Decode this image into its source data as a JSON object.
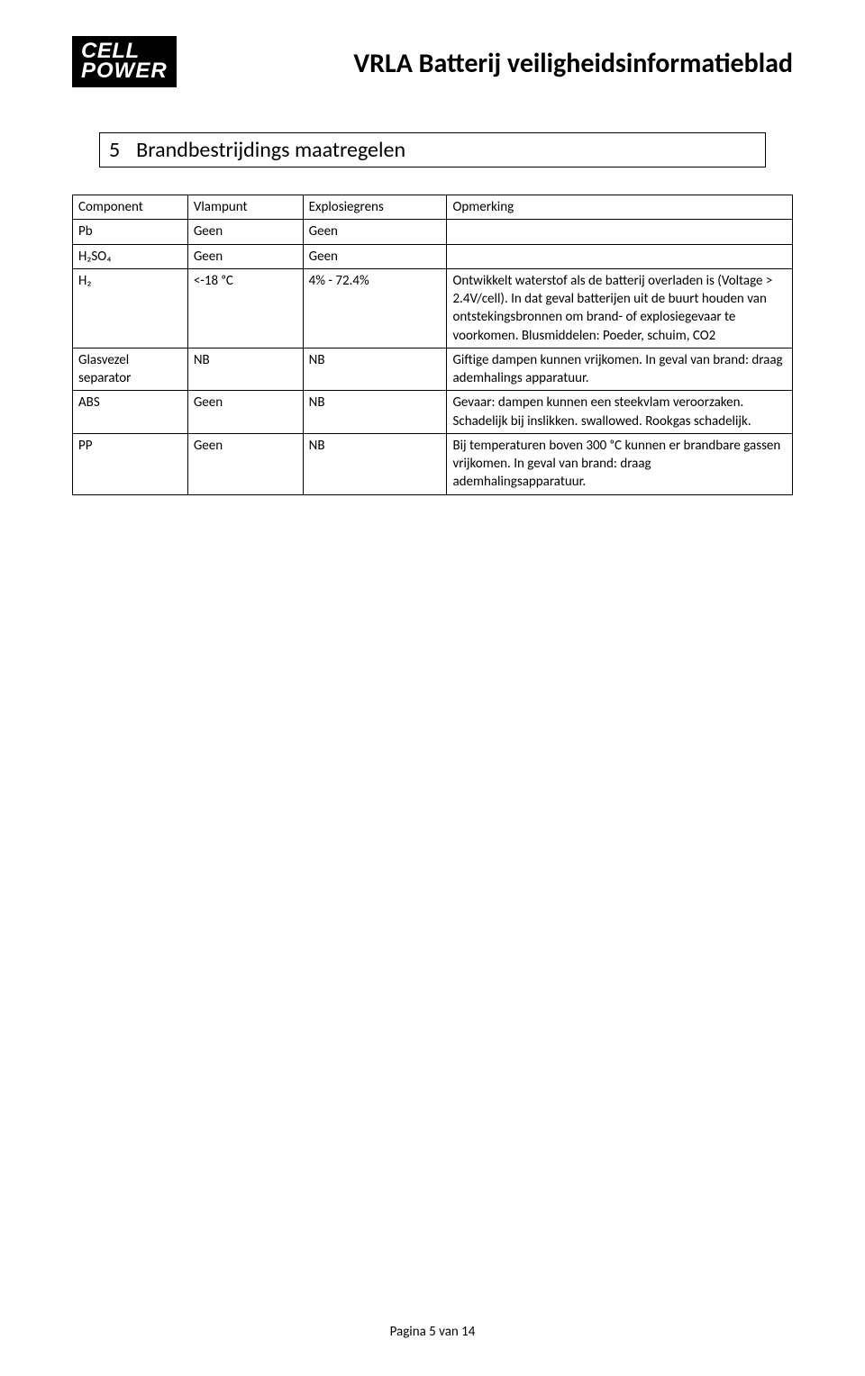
{
  "logo": {
    "line1": "CELL",
    "line2": "POWER"
  },
  "doc_title": "VRLA Batterij veiligheidsinformatieblad",
  "section": {
    "number": "5",
    "title": "Brandbestrijdings maatregelen"
  },
  "table": {
    "headers": [
      "Component",
      "Vlampunt",
      "Explosiegrens",
      "Opmerking"
    ],
    "col_widths": [
      "16%",
      "16%",
      "20%",
      "48%"
    ],
    "rows": [
      {
        "component": "Pb",
        "vlampunt": "Geen",
        "explosiegrens": "Geen",
        "opmerking": ""
      },
      {
        "component": "H₂SO₄",
        "vlampunt": "Geen",
        "explosiegrens": "Geen",
        "opmerking": ""
      },
      {
        "component": "H₂",
        "vlampunt": "<-18 ᵒC",
        "explosiegrens": "4% - 72.4%",
        "opmerking": "Ontwikkelt waterstof als de batterij overladen is  (Voltage > 2.4V/cell). In dat geval batterijen uit de buurt houden van ontstekingsbronnen om brand- of explosiegevaar te voorkomen. Blusmiddelen: Poeder, schuim, CO2"
      },
      {
        "component": "Glasvezel separator",
        "vlampunt": "NB",
        "explosiegrens": "NB",
        "opmerking": "Giftige dampen kunnen vrijkomen. In geval van brand: draag ademhalings apparatuur."
      },
      {
        "component": "ABS",
        "vlampunt": "Geen",
        "explosiegrens": "NB",
        "opmerking": "Gevaar: dampen kunnen een steekvlam veroorzaken. Schadelijk bij inslikken. swallowed. Rookgas schadelijk."
      },
      {
        "component": "PP",
        "vlampunt": "Geen",
        "explosiegrens": "NB",
        "opmerking": "Bij temperaturen boven 300 ᵒC kunnen er brandbare gassen vrijkomen. In geval van brand: draag ademhalingsapparatuur."
      }
    ]
  },
  "footer": "Pagina 5 van 14"
}
